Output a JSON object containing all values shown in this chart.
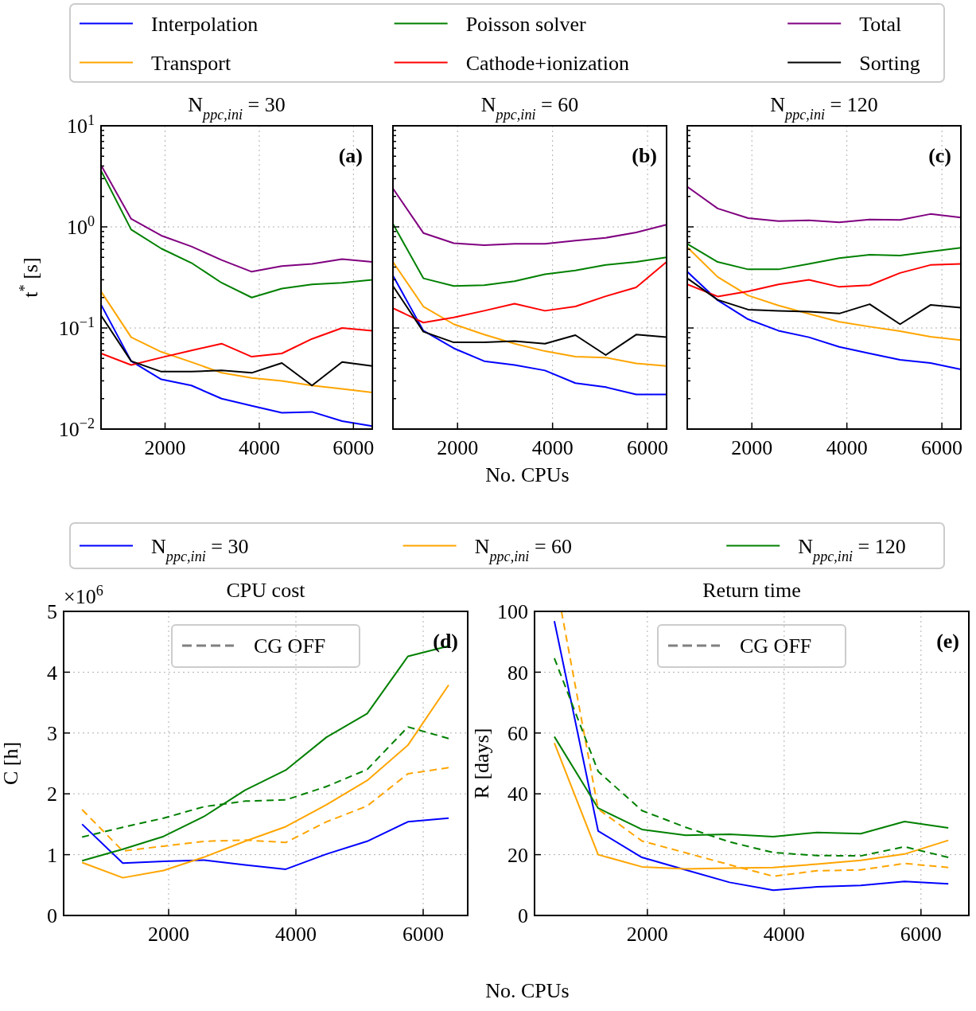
{
  "chart_data": [
    {
      "type": "line",
      "title": "N$_{ppc,ini}$ = 30",
      "ylabel": "t$^{*}$ [s]",
      "x": [
        640,
        1280,
        1920,
        2560,
        3200,
        3840,
        4480,
        5120,
        5760,
        6400
      ],
      "xlim": [
        640,
        6400
      ],
      "xticks": [
        2000,
        4000,
        6000
      ],
      "ylim": [
        0.01,
        10
      ],
      "yticks": [
        {
          "value": 0.01,
          "label": "10$^{−2}$"
        },
        {
          "value": 0.02,
          "label": null
        },
        {
          "value": 0.03,
          "label": null
        },
        {
          "value": 0.04,
          "label": null
        },
        {
          "value": 0.05,
          "label": null
        },
        {
          "value": 0.06,
          "label": null
        },
        {
          "value": 0.07,
          "label": null
        },
        {
          "value": 0.08,
          "label": null
        },
        {
          "value": 0.09,
          "label": null
        },
        {
          "value": 0.1,
          "label": "10$^{−1}$"
        },
        {
          "value": 0.2,
          "label": null
        },
        {
          "value": 0.3,
          "label": null
        },
        {
          "value": 0.4,
          "label": null
        },
        {
          "value": 0.5,
          "label": null
        },
        {
          "value": 0.6,
          "label": null
        },
        {
          "value": 0.7,
          "label": null
        },
        {
          "value": 0.8,
          "label": null
        },
        {
          "value": 0.9,
          "label": null
        },
        {
          "value": 1,
          "label": "10$^{0}$"
        },
        {
          "value": 2,
          "label": null
        },
        {
          "value": 3,
          "label": null
        },
        {
          "value": 4,
          "label": null
        },
        {
          "value": 5,
          "label": null
        },
        {
          "value": 6,
          "label": null
        },
        {
          "value": 7,
          "label": null
        },
        {
          "value": 8,
          "label": null
        },
        {
          "value": 9,
          "label": null
        },
        {
          "value": 10,
          "label": "10$^{1}$"
        }
      ],
      "log": "y",
      "grid": true,
      "legend": "top",
      "annotations": [
        "(a)"
      ],
      "series": [
        {
          "name": "Interpolation",
          "color": "#0000ff",
          "values": [
            0.17,
            0.047,
            0.031,
            0.027,
            0.02,
            0.017,
            0.0145,
            0.0148,
            0.012,
            0.0107
          ]
        },
        {
          "name": "Transport",
          "color": "#ffa500",
          "values": [
            0.23,
            0.081,
            0.058,
            0.046,
            0.036,
            0.032,
            0.03,
            0.027,
            0.025,
            0.023
          ]
        },
        {
          "name": "Poisson solver",
          "color": "#008000",
          "values": [
            3.6,
            0.94,
            0.61,
            0.44,
            0.28,
            0.2,
            0.245,
            0.27,
            0.28,
            0.3
          ]
        },
        {
          "name": "Cathode+ionization",
          "color": "#ff0000",
          "values": [
            0.056,
            0.043,
            0.051,
            0.06,
            0.07,
            0.052,
            0.056,
            0.078,
            0.1,
            0.094
          ]
        },
        {
          "name": "Total",
          "color": "#800080",
          "values": [
            4.07,
            1.2,
            0.82,
            0.64,
            0.47,
            0.36,
            0.41,
            0.43,
            0.48,
            0.45
          ]
        },
        {
          "name": "Sorting",
          "color": "#000000",
          "values": [
            0.133,
            0.047,
            0.037,
            0.037,
            0.038,
            0.036,
            0.045,
            0.027,
            0.046,
            0.042
          ]
        }
      ]
    },
    {
      "type": "line",
      "title": "N$_{ppc,ini}$ = 60",
      "xlabel": "No. CPUs",
      "x": [
        640,
        1280,
        1920,
        2560,
        3200,
        3840,
        4480,
        5120,
        5760,
        6400
      ],
      "xlim": [
        640,
        6400
      ],
      "xticks": [
        2000,
        4000,
        6000
      ],
      "ylim": [
        0.01,
        10
      ],
      "yticks": [
        {
          "value": 0.01,
          "label": null
        },
        {
          "value": 0.02,
          "label": null
        },
        {
          "value": 0.03,
          "label": null
        },
        {
          "value": 0.04,
          "label": null
        },
        {
          "value": 0.05,
          "label": null
        },
        {
          "value": 0.06,
          "label": null
        },
        {
          "value": 0.07,
          "label": null
        },
        {
          "value": 0.08,
          "label": null
        },
        {
          "value": 0.09,
          "label": null
        },
        {
          "value": 0.1,
          "label": null
        },
        {
          "value": 0.2,
          "label": null
        },
        {
          "value": 0.3,
          "label": null
        },
        {
          "value": 0.4,
          "label": null
        },
        {
          "value": 0.5,
          "label": null
        },
        {
          "value": 0.6,
          "label": null
        },
        {
          "value": 0.7,
          "label": null
        },
        {
          "value": 0.8,
          "label": null
        },
        {
          "value": 0.9,
          "label": null
        },
        {
          "value": 1,
          "label": null
        },
        {
          "value": 2,
          "label": null
        },
        {
          "value": 3,
          "label": null
        },
        {
          "value": 4,
          "label": null
        },
        {
          "value": 5,
          "label": null
        },
        {
          "value": 6,
          "label": null
        },
        {
          "value": 7,
          "label": null
        },
        {
          "value": 8,
          "label": null
        },
        {
          "value": 9,
          "label": null
        },
        {
          "value": 10,
          "label": null
        }
      ],
      "log": "y",
      "grid": true,
      "tick_labels": "x",
      "annotations": [
        "(b)"
      ],
      "series": [
        {
          "color": "#0000ff",
          "values": [
            0.33,
            0.094,
            0.063,
            0.047,
            0.043,
            0.038,
            0.0285,
            0.026,
            0.022,
            0.022
          ]
        },
        {
          "color": "#ffa500",
          "values": [
            0.45,
            0.163,
            0.109,
            0.086,
            0.07,
            0.059,
            0.052,
            0.051,
            0.0446,
            0.042
          ]
        },
        {
          "color": "#008000",
          "values": [
            1.07,
            0.31,
            0.26,
            0.265,
            0.29,
            0.34,
            0.37,
            0.42,
            0.45,
            0.5
          ]
        },
        {
          "color": "#ff0000",
          "values": [
            0.157,
            0.113,
            0.127,
            0.148,
            0.174,
            0.148,
            0.163,
            0.206,
            0.252,
            0.45
          ]
        },
        {
          "color": "#800080",
          "values": [
            2.4,
            0.87,
            0.69,
            0.66,
            0.68,
            0.68,
            0.73,
            0.78,
            0.88,
            1.05
          ]
        },
        {
          "color": "#000000",
          "values": [
            0.26,
            0.092,
            0.072,
            0.072,
            0.074,
            0.07,
            0.085,
            0.054,
            0.086,
            0.081
          ]
        }
      ]
    },
    {
      "type": "line",
      "title": "N$_{ppc,ini}$ = 120",
      "x": [
        640,
        1280,
        1920,
        2560,
        3200,
        3840,
        4480,
        5120,
        5760,
        6400
      ],
      "xlim": [
        640,
        6400
      ],
      "xticks": [
        2000,
        4000,
        6000
      ],
      "ylim": [
        0.01,
        10
      ],
      "yticks": [
        {
          "value": 0.01,
          "label": null
        },
        {
          "value": 0.02,
          "label": null
        },
        {
          "value": 0.03,
          "label": null
        },
        {
          "value": 0.04,
          "label": null
        },
        {
          "value": 0.05,
          "label": null
        },
        {
          "value": 0.06,
          "label": null
        },
        {
          "value": 0.07,
          "label": null
        },
        {
          "value": 0.08,
          "label": null
        },
        {
          "value": 0.09,
          "label": null
        },
        {
          "value": 0.1,
          "label": null
        },
        {
          "value": 0.2,
          "label": null
        },
        {
          "value": 0.3,
          "label": null
        },
        {
          "value": 0.4,
          "label": null
        },
        {
          "value": 0.5,
          "label": null
        },
        {
          "value": 0.6,
          "label": null
        },
        {
          "value": 0.7,
          "label": null
        },
        {
          "value": 0.8,
          "label": null
        },
        {
          "value": 0.9,
          "label": null
        },
        {
          "value": 1,
          "label": null
        },
        {
          "value": 2,
          "label": null
        },
        {
          "value": 3,
          "label": null
        },
        {
          "value": 4,
          "label": null
        },
        {
          "value": 5,
          "label": null
        },
        {
          "value": 6,
          "label": null
        },
        {
          "value": 7,
          "label": null
        },
        {
          "value": 8,
          "label": null
        },
        {
          "value": 9,
          "label": null
        },
        {
          "value": 10,
          "label": null
        }
      ],
      "log": "y",
      "grid": true,
      "tick_labels": "x",
      "annotations": [
        "(c)"
      ],
      "series": [
        {
          "color": "#0000ff",
          "values": [
            0.36,
            0.188,
            0.122,
            0.094,
            0.081,
            0.065,
            0.056,
            0.0485,
            0.045,
            0.039
          ]
        },
        {
          "color": "#ffa500",
          "values": [
            0.63,
            0.32,
            0.21,
            0.167,
            0.138,
            0.115,
            0.103,
            0.093,
            0.082,
            0.076
          ]
        },
        {
          "color": "#008000",
          "values": [
            0.68,
            0.45,
            0.38,
            0.38,
            0.43,
            0.49,
            0.53,
            0.52,
            0.57,
            0.62
          ]
        },
        {
          "color": "#ff0000",
          "values": [
            0.27,
            0.205,
            0.23,
            0.27,
            0.3,
            0.255,
            0.265,
            0.35,
            0.42,
            0.43
          ]
        },
        {
          "color": "#800080",
          "values": [
            2.5,
            1.52,
            1.22,
            1.14,
            1.16,
            1.11,
            1.18,
            1.17,
            1.34,
            1.24
          ]
        },
        {
          "color": "#000000",
          "values": [
            0.31,
            0.19,
            0.152,
            0.148,
            0.145,
            0.139,
            0.172,
            0.109,
            0.169,
            0.159
          ]
        }
      ]
    },
    {
      "type": "line",
      "title": "CPU cost",
      "xlabel": "No. CPUs",
      "ylabel": "C [h]",
      "x": [
        640,
        1280,
        1920,
        2560,
        3200,
        3840,
        4480,
        5120,
        5760,
        6400
      ],
      "xlim": [
        350,
        6700
      ],
      "xticks": [
        2000,
        4000,
        6000
      ],
      "ylim": [
        0,
        5
      ],
      "yticks": [
        0,
        1,
        2,
        3,
        4,
        5
      ],
      "grid": true,
      "legend": "top",
      "legend_title": "CG OFF",
      "annotations": [
        "×10$^{6}$",
        "(d)"
      ],
      "series": [
        {
          "name": "N$_{ppc,ini}$ = 30",
          "color": "#0000ff",
          "values": [
            1.5,
            0.86,
            0.89,
            0.91,
            0.83,
            0.76,
            1.01,
            1.22,
            1.54,
            1.6
          ]
        },
        {
          "name": "N$_{ppc,ini}$ = 60",
          "color": "#ffa500",
          "values": [
            0.87,
            0.62,
            0.74,
            0.96,
            1.22,
            1.46,
            1.82,
            2.22,
            2.8,
            3.79
          ]
        },
        {
          "name": "N$_{ppc,ini}$ = 120",
          "color": "#008000",
          "values": [
            0.9,
            1.09,
            1.3,
            1.63,
            2.06,
            2.39,
            2.93,
            3.32,
            4.26,
            4.43
          ]
        },
        {
          "color": "#ffa500",
          "line_style": "dashed",
          "values": [
            1.74,
            1.06,
            1.14,
            1.22,
            1.24,
            1.2,
            1.54,
            1.8,
            2.33,
            2.43
          ]
        },
        {
          "color": "#008000",
          "line_style": "dashed",
          "values": [
            1.29,
            1.45,
            1.6,
            1.79,
            1.88,
            1.9,
            2.12,
            2.4,
            3.1,
            2.91
          ]
        }
      ]
    },
    {
      "type": "line",
      "title": "Return time",
      "ylabel": "R [days]",
      "x": [
        640,
        1280,
        1920,
        2560,
        3200,
        3840,
        4480,
        5120,
        5760,
        6400
      ],
      "xlim": [
        350,
        6700
      ],
      "xticks": [
        2000,
        4000,
        6000
      ],
      "ylim": [
        0,
        100
      ],
      "yticks": [
        0,
        20,
        40,
        60,
        80,
        100
      ],
      "grid": true,
      "legend": "top",
      "legend_title": "CG OFF",
      "annotations": [
        "(e)"
      ],
      "series": [
        {
          "color": "#0000ff",
          "values": [
            96.8,
            27.8,
            19.1,
            15,
            10.9,
            8.3,
            9.4,
            9.9,
            11.2,
            10.4
          ]
        },
        {
          "color": "#ffa500",
          "values": [
            56.7,
            20,
            16,
            15.3,
            15.6,
            15.8,
            16.9,
            18.1,
            20.2,
            24.7
          ]
        },
        {
          "color": "#008000",
          "values": [
            58.8,
            35.3,
            28.3,
            26.4,
            26.7,
            25.9,
            27.3,
            26.9,
            30.9,
            28.8
          ]
        },
        {
          "color": "#ffa500",
          "line_style": "dashed",
          "x": [
            744,
            1280,
            1920,
            2560,
            3200,
            3840,
            4480,
            5120,
            5760,
            6400
          ],
          "values": [
            100,
            35,
            24.5,
            20.6,
            16.7,
            12.9,
            14.7,
            15,
            17.1,
            15.8
          ]
        },
        {
          "color": "#008000",
          "line_style": "dashed",
          "values": [
            84.6,
            47.4,
            34.5,
            29,
            24.2,
            20.7,
            19.7,
            19.6,
            22.6,
            19.1
          ]
        }
      ]
    }
  ]
}
